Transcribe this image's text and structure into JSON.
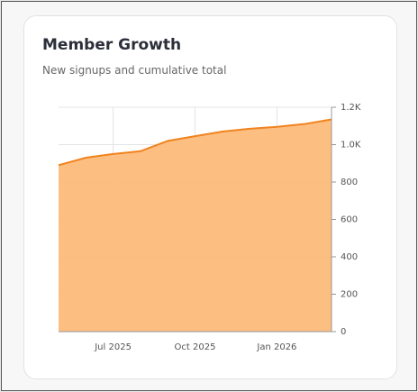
{
  "chart_data": {
    "type": "area",
    "title": "Member Growth",
    "subtitle": "New signups and cumulative total",
    "x": [
      "2025-05",
      "2025-06",
      "2025-07",
      "2025-08",
      "2025-09",
      "2025-10",
      "2025-11",
      "2025-12",
      "2026-01",
      "2026-02",
      "2026-03"
    ],
    "series": [
      {
        "color": "#f0831e",
        "fill": "#fdbb7a",
        "values": [
          890,
          930,
          950,
          965,
          1020,
          1045,
          1070,
          1085,
          1095,
          1110,
          1135
        ]
      }
    ],
    "xlim": [
      "2025-05",
      "2026-03"
    ],
    "xticks": [
      {
        "value": "2025-07",
        "label": "Jul 2025"
      },
      {
        "value": "2025-10",
        "label": "Oct 2025"
      },
      {
        "value": "2026-01",
        "label": "Jan 2026"
      }
    ],
    "ylim": [
      0,
      1200
    ],
    "yticks": [
      0,
      200,
      400,
      600,
      800,
      {
        "value": 1000,
        "label": "1.0K"
      },
      {
        "value": 1200,
        "label": "1.2K"
      }
    ],
    "grid": true
  }
}
